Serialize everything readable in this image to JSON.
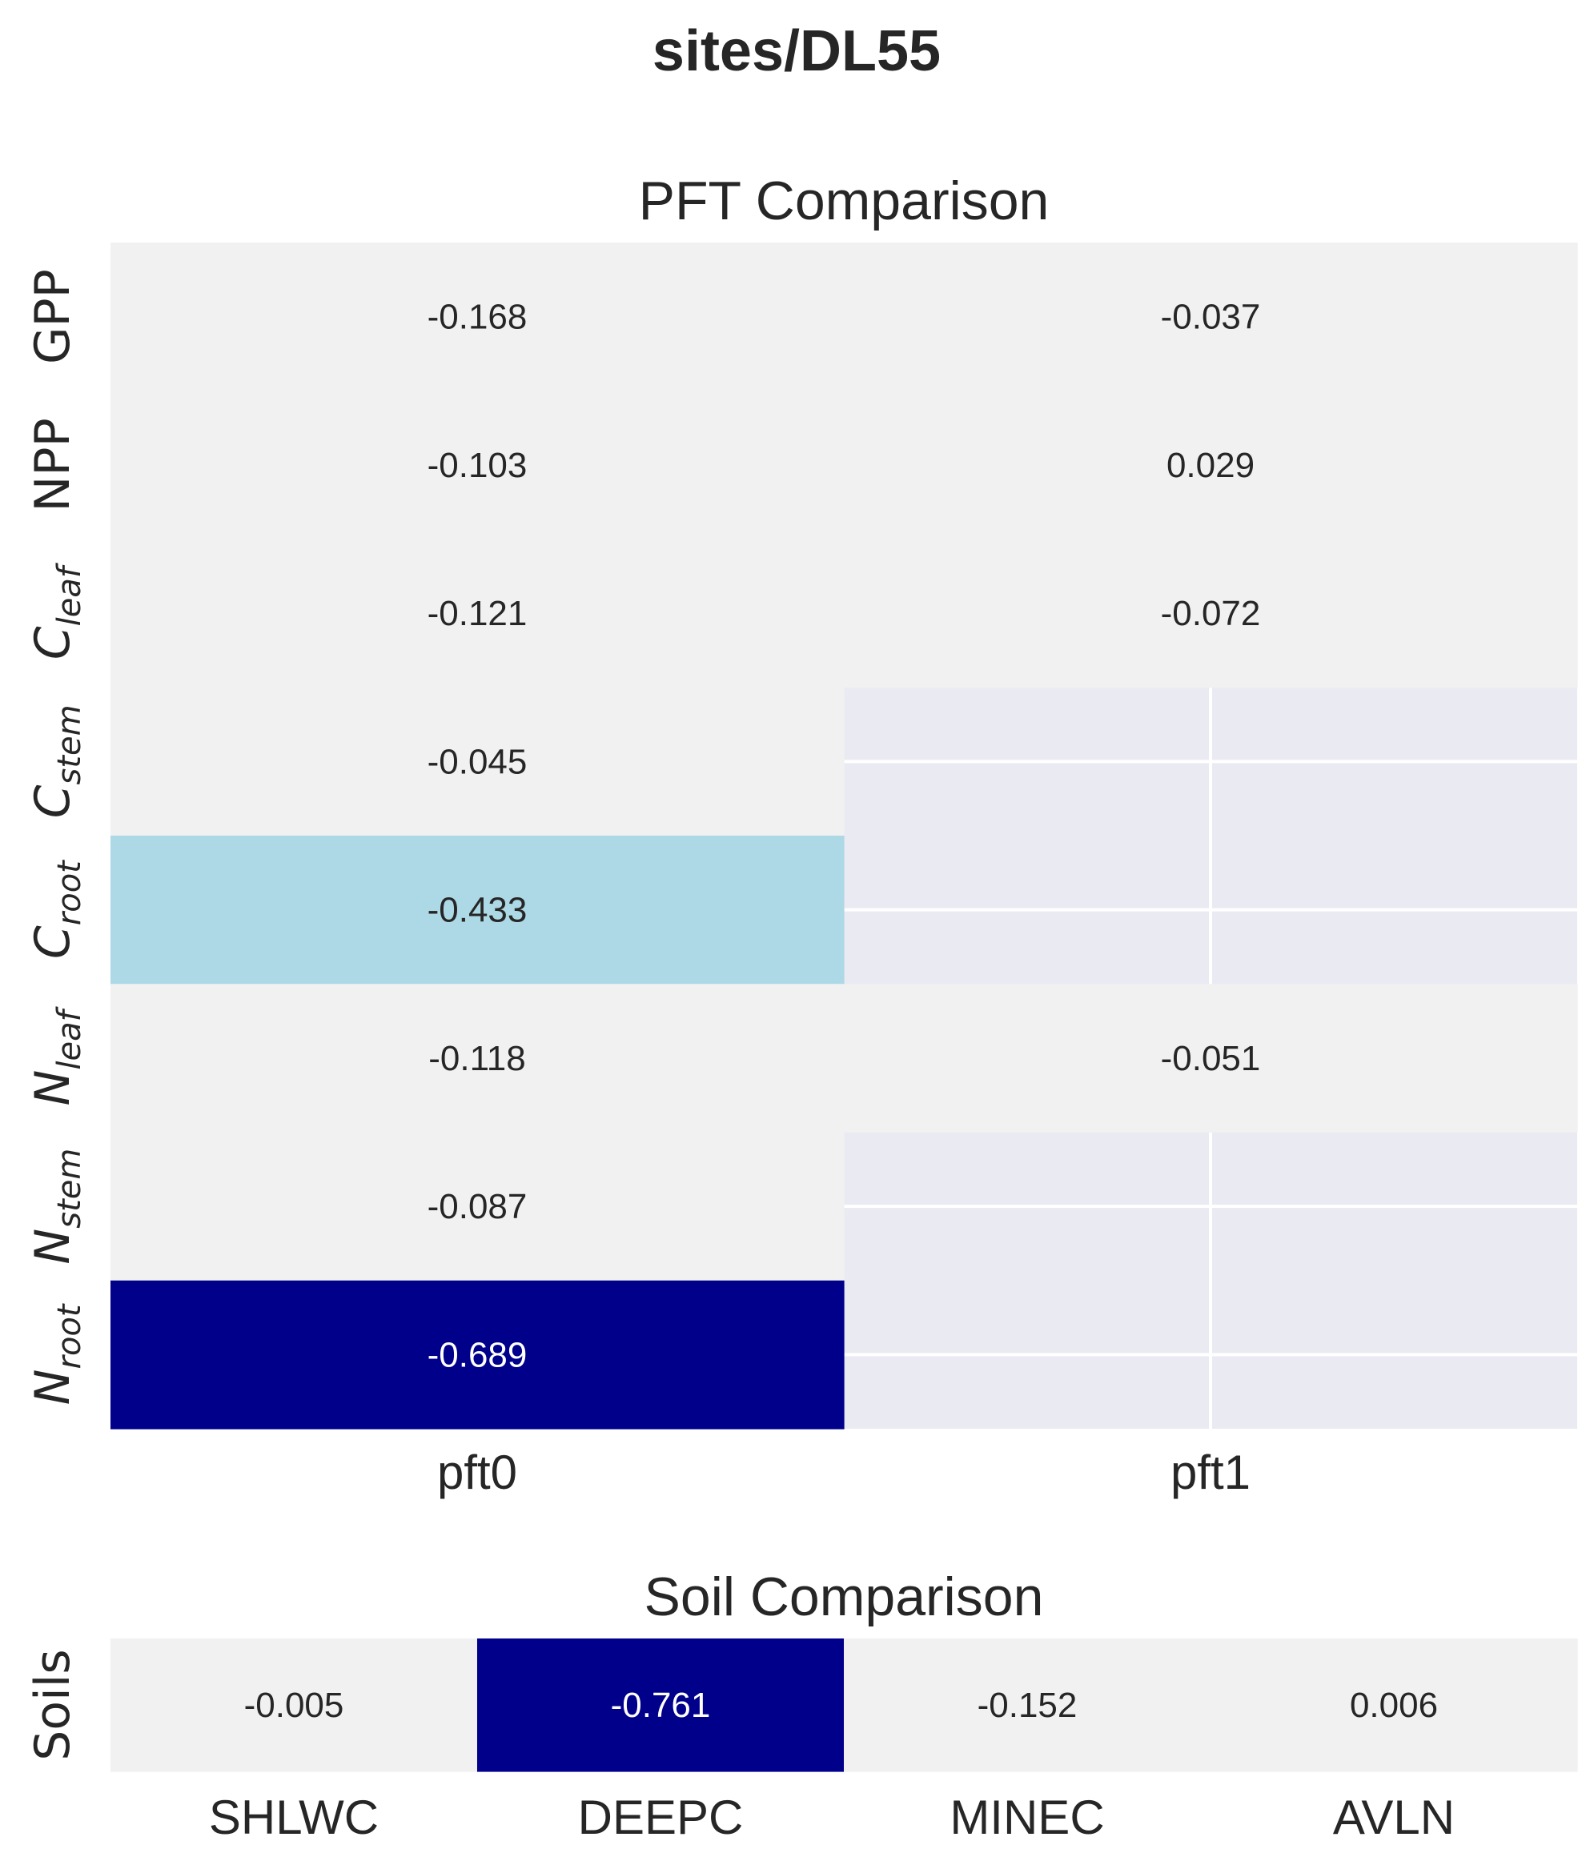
{
  "suptitle": "sites/DL55",
  "colors": {
    "background_axes": "#eaeaf2",
    "grid": "#ffffff",
    "highlight_dark": "#00008b",
    "highlight_light": "#add8e6",
    "neutral_cell": "#f1f1f1",
    "text_dark": "#262626",
    "text_light": "#ffffff"
  },
  "chart_data": [
    {
      "type": "heatmap",
      "title": "PFT Comparison",
      "xlabel": "",
      "ylabel": "",
      "grid": true,
      "columns": [
        "pft0",
        "pft1"
      ],
      "rows": [
        {
          "base": "GPP",
          "sub": ""
        },
        {
          "base": "NPP",
          "sub": ""
        },
        {
          "base": "C",
          "sub": "leaf"
        },
        {
          "base": "C",
          "sub": "stem"
        },
        {
          "base": "C",
          "sub": "root"
        },
        {
          "base": "N",
          "sub": "leaf"
        },
        {
          "base": "N",
          "sub": "stem"
        },
        {
          "base": "N",
          "sub": "root"
        }
      ],
      "values": [
        [
          -0.168,
          -0.037
        ],
        [
          -0.103,
          0.029
        ],
        [
          -0.121,
          -0.072
        ],
        [
          -0.045,
          null
        ],
        [
          -0.433,
          null
        ],
        [
          -0.118,
          -0.051
        ],
        [
          -0.087,
          null
        ],
        [
          -0.689,
          null
        ]
      ],
      "labels": [
        [
          "-0.168",
          "-0.037"
        ],
        [
          "-0.103",
          "0.029"
        ],
        [
          "-0.121",
          "-0.072"
        ],
        [
          "-0.045",
          ""
        ],
        [
          "-0.433",
          ""
        ],
        [
          "-0.118",
          "-0.051"
        ],
        [
          "-0.087",
          ""
        ],
        [
          "-0.689",
          ""
        ]
      ]
    },
    {
      "type": "heatmap",
      "title": "Soil Comparison",
      "xlabel": "",
      "ylabel": "",
      "grid": true,
      "columns": [
        "SHLWC",
        "DEEPC",
        "MINEC",
        "AVLN"
      ],
      "rows": [
        {
          "base": "Soils",
          "sub": ""
        }
      ],
      "values": [
        [
          -0.005,
          -0.761,
          -0.152,
          0.006
        ]
      ],
      "labels": [
        [
          "-0.005",
          "-0.761",
          "-0.152",
          "0.006"
        ]
      ]
    }
  ]
}
